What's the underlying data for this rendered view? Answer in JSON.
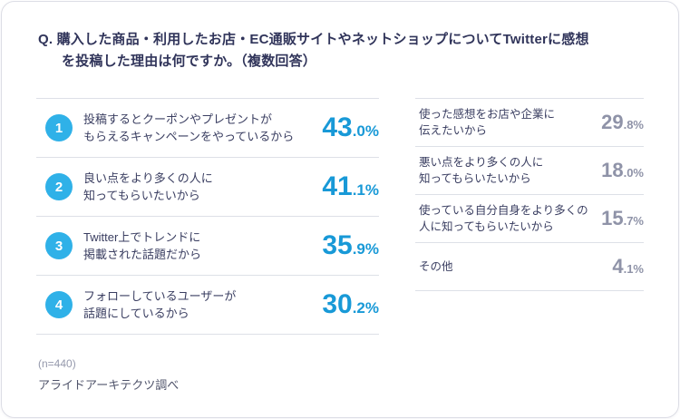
{
  "title": {
    "line1": "Q. 購入した商品・利用したお店・EC通販サイトやネットショップについてTwitterに感想",
    "line2": "を投稿した理由は何ですか。（複数回答）"
  },
  "ranking": {
    "items": [
      {
        "rank": "1",
        "label_line1": "投稿するとクーポンやプレゼントが",
        "label_line2": "もらえるキャンペーンをやっているから",
        "value_int": "43",
        "value_frac": ".0%"
      },
      {
        "rank": "2",
        "label_line1": "良い点をより多くの人に",
        "label_line2": "知ってもらいたいから",
        "value_int": "41",
        "value_frac": ".1%"
      },
      {
        "rank": "3",
        "label_line1": "Twitter上でトレンドに",
        "label_line2": "掲載された話題だから",
        "value_int": "35",
        "value_frac": ".9%"
      },
      {
        "rank": "4",
        "label_line1": "フォローしているユーザーが",
        "label_line2": "話題にしているから",
        "value_int": "30",
        "value_frac": ".2%"
      }
    ]
  },
  "others": {
    "items": [
      {
        "label_line1": "使った感想をお店や企業に",
        "label_line2": "伝えたいから",
        "value_int": "29",
        "value_frac": ".8%"
      },
      {
        "label_line1": "悪い点をより多くの人に",
        "label_line2": "知ってもらいたいから",
        "value_int": "18",
        "value_frac": ".0%"
      },
      {
        "label_line1": "使っている自分自身をより多くの",
        "label_line2": "人に知ってもらいたいから",
        "value_int": "15",
        "value_frac": ".7%"
      },
      {
        "label_line1": "その他",
        "label_line2": "",
        "value_int": "4",
        "value_frac": ".1%"
      }
    ]
  },
  "footer": {
    "sample": "(n=440)",
    "source": "アライドアーキテクツ調べ"
  },
  "colors": {
    "accent_blue": "#1899d7",
    "badge_blue": "#2fb1e8",
    "text_navy": "#30345a",
    "muted_gray": "#8f93a8",
    "separator": "#dde0e7"
  },
  "chart_data": {
    "type": "table",
    "title": "Q. 購入した商品・利用したお店・EC通販サイトやネットショップについてTwitterに感想を投稿した理由は何ですか。（複数回答）",
    "n": 440,
    "source": "アライドアーキテクツ調べ",
    "unit": "%",
    "items": [
      {
        "rank": 1,
        "label": "投稿するとクーポンやプレゼントがもらえるキャンペーンをやっているから",
        "value": 43.0
      },
      {
        "rank": 2,
        "label": "良い点をより多くの人に知ってもらいたいから",
        "value": 41.1
      },
      {
        "rank": 3,
        "label": "Twitter上でトレンドに掲載された話題だから",
        "value": 35.9
      },
      {
        "rank": 4,
        "label": "フォローしているユーザーが話題にしているから",
        "value": 30.2
      },
      {
        "rank": null,
        "label": "使った感想をお店や企業に伝えたいから",
        "value": 29.8
      },
      {
        "rank": null,
        "label": "悪い点をより多くの人に知ってもらいたいから",
        "value": 18.0
      },
      {
        "rank": null,
        "label": "使っている自分自身をより多くの人に知ってもらいたいから",
        "value": 15.7
      },
      {
        "rank": null,
        "label": "その他",
        "value": 4.1
      }
    ]
  }
}
